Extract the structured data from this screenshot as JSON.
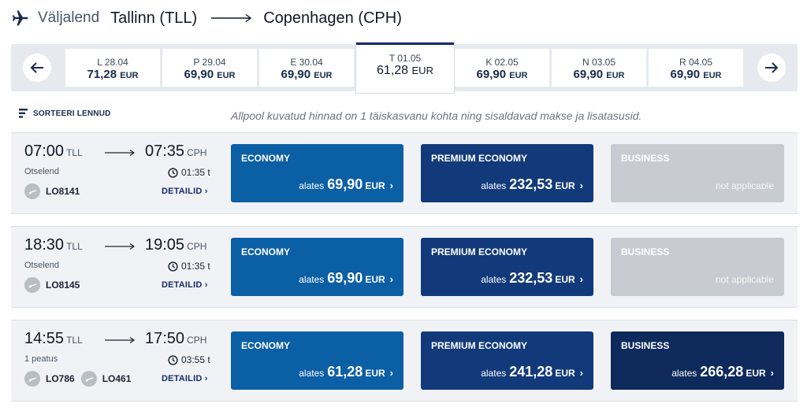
{
  "header": {
    "label": "Väljalend",
    "origin": "Tallinn (TLL)",
    "destination": "Copenhagen (CPH)"
  },
  "dates": [
    {
      "label": "L 28.04",
      "price": "71,28",
      "currency": "EUR"
    },
    {
      "label": "P 29.04",
      "price": "69,90",
      "currency": "EUR"
    },
    {
      "label": "E 30.04",
      "price": "69,90",
      "currency": "EUR"
    },
    {
      "label": "T 01.05",
      "price": "61,28",
      "currency": "EUR"
    },
    {
      "label": "K 02.05",
      "price": "69,90",
      "currency": "EUR"
    },
    {
      "label": "N 03.05",
      "price": "69,90",
      "currency": "EUR"
    },
    {
      "label": "R 04.05",
      "price": "69,90",
      "currency": "EUR"
    }
  ],
  "sort": {
    "label": "SORTEERI LENNUD"
  },
  "notice": "Allpool kuvatud hinnad on 1 täiskasvanu kohta ning sisaldavad makse ja lisatasusid.",
  "flights": [
    {
      "dep_time": "07:00",
      "dep_code": "TLL",
      "arr_time": "07:35",
      "arr_code": "CPH",
      "stops": "Otselend",
      "duration": "01:35 t",
      "flight_numbers": [
        "LO8141"
      ],
      "details": "DETAILID",
      "economy": {
        "title": "ECONOMY",
        "from": "alates",
        "price": "69,90",
        "currency": "EUR"
      },
      "premium": {
        "title": "PREMIUM ECONOMY",
        "from": "alates",
        "price": "232,53",
        "currency": "EUR"
      },
      "business": {
        "title": "BUSINESS",
        "na": "not applicable"
      }
    },
    {
      "dep_time": "18:30",
      "dep_code": "TLL",
      "arr_time": "19:05",
      "arr_code": "CPH",
      "stops": "Otselend",
      "duration": "01:35 t",
      "flight_numbers": [
        "LO8145"
      ],
      "details": "DETAILID",
      "economy": {
        "title": "ECONOMY",
        "from": "alates",
        "price": "69,90",
        "currency": "EUR"
      },
      "premium": {
        "title": "PREMIUM ECONOMY",
        "from": "alates",
        "price": "232,53",
        "currency": "EUR"
      },
      "business": {
        "title": "BUSINESS",
        "na": "not applicable"
      }
    },
    {
      "dep_time": "14:55",
      "dep_code": "TLL",
      "arr_time": "17:50",
      "arr_code": "CPH",
      "stops": "1 peatus",
      "duration": "03:55 t",
      "flight_numbers": [
        "LO786",
        "LO461"
      ],
      "details": "DETAILID",
      "economy": {
        "title": "ECONOMY",
        "from": "alates",
        "price": "61,28",
        "currency": "EUR"
      },
      "premium": {
        "title": "PREMIUM ECONOMY",
        "from": "alates",
        "price": "241,28",
        "currency": "EUR"
      },
      "business": {
        "title": "BUSINESS",
        "from": "alates",
        "price": "266,28",
        "currency": "EUR"
      }
    }
  ],
  "icons": {
    "plane": "plane-icon",
    "arrow_left": "arrow-left-icon",
    "arrow_right": "arrow-right-icon",
    "sort": "sort-icon",
    "clock": "clock-icon",
    "airline": "airline-logo-icon",
    "chevron": "chevron-right-icon"
  },
  "colors": {
    "economy": "#0b5fa5",
    "premium": "#123a7a",
    "business": "#0e2a5c",
    "unavailable": "#c8cbd1",
    "navy": "#1a2b6d"
  }
}
